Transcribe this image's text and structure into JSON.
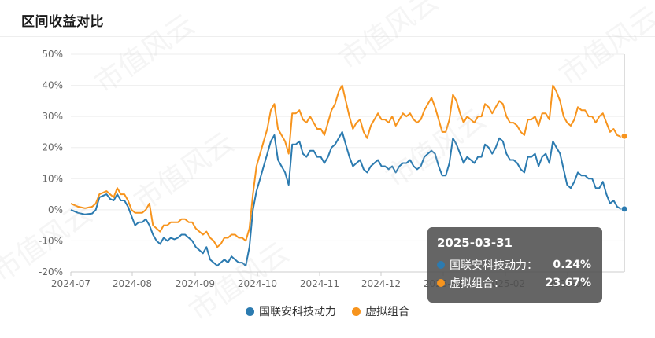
{
  "title": "区间收益对比",
  "watermark": "市值风云",
  "chart_data": {
    "type": "line",
    "yticks": [
      "50%",
      "40%",
      "30%",
      "20%",
      "10%",
      "0%",
      "-10%",
      "-20%"
    ],
    "ylim": [
      -20,
      50
    ],
    "xticks": [
      "2024-07",
      "2024-08",
      "2024-09",
      "2024-10",
      "2024-11",
      "2024-12",
      "2025-01",
      "2025-02",
      "2025-03"
    ],
    "grid": true,
    "legend_position": "bottom",
    "series": [
      {
        "name": "国联安科技动力",
        "color": "#2c7bb0",
        "values": [
          [
            0,
            0
          ],
          [
            2,
            -1
          ],
          [
            4,
            -1.5
          ],
          [
            6,
            -1.2
          ],
          [
            7,
            0
          ],
          [
            8,
            4
          ],
          [
            10,
            5
          ],
          [
            11,
            3.5
          ],
          [
            12,
            3
          ],
          [
            13,
            5
          ],
          [
            14,
            3
          ],
          [
            15,
            3
          ],
          [
            16,
            1
          ],
          [
            17,
            -2
          ],
          [
            18,
            -5
          ],
          [
            19,
            -4
          ],
          [
            20,
            -4
          ],
          [
            21,
            -3
          ],
          [
            22,
            -5
          ],
          [
            23,
            -8
          ],
          [
            24,
            -10
          ],
          [
            25,
            -11
          ],
          [
            26,
            -9
          ],
          [
            27,
            -10
          ],
          [
            28,
            -9
          ],
          [
            29,
            -9.5
          ],
          [
            30,
            -9
          ],
          [
            31,
            -8
          ],
          [
            32,
            -8
          ],
          [
            33,
            -9
          ],
          [
            34,
            -10
          ],
          [
            35,
            -12
          ],
          [
            36,
            -13
          ],
          [
            37,
            -14
          ],
          [
            38,
            -12
          ],
          [
            39,
            -16
          ],
          [
            40,
            -17
          ],
          [
            41,
            -18
          ],
          [
            42,
            -17
          ],
          [
            43,
            -16
          ],
          [
            44,
            -17
          ],
          [
            45,
            -15
          ],
          [
            46,
            -16
          ],
          [
            47,
            -17
          ],
          [
            48,
            -17
          ],
          [
            49,
            -18
          ],
          [
            50,
            -12
          ],
          [
            51,
            0
          ],
          [
            52,
            6
          ],
          [
            53,
            10
          ],
          [
            54,
            14
          ],
          [
            55,
            18
          ],
          [
            56,
            22
          ],
          [
            57,
            24
          ],
          [
            58,
            16
          ],
          [
            59,
            14
          ],
          [
            60,
            12
          ],
          [
            61,
            8
          ],
          [
            62,
            21
          ],
          [
            63,
            21
          ],
          [
            64,
            22
          ],
          [
            65,
            18
          ],
          [
            66,
            17
          ],
          [
            67,
            19
          ],
          [
            68,
            19
          ],
          [
            69,
            17
          ],
          [
            70,
            17
          ],
          [
            71,
            15
          ],
          [
            72,
            17
          ],
          [
            73,
            20
          ],
          [
            74,
            21
          ],
          [
            75,
            23
          ],
          [
            76,
            25
          ],
          [
            77,
            21
          ],
          [
            78,
            17
          ],
          [
            79,
            14
          ],
          [
            80,
            15
          ],
          [
            81,
            16
          ],
          [
            82,
            13
          ],
          [
            83,
            12
          ],
          [
            84,
            14
          ],
          [
            85,
            15
          ],
          [
            86,
            16
          ],
          [
            87,
            14
          ],
          [
            88,
            14
          ],
          [
            89,
            13
          ],
          [
            90,
            14
          ],
          [
            91,
            12
          ],
          [
            92,
            14
          ],
          [
            93,
            15
          ],
          [
            94,
            15
          ],
          [
            95,
            16
          ],
          [
            96,
            14
          ],
          [
            97,
            13
          ],
          [
            98,
            14
          ],
          [
            99,
            17
          ],
          [
            100,
            18
          ],
          [
            101,
            19
          ],
          [
            102,
            18
          ],
          [
            103,
            14
          ],
          [
            104,
            11
          ],
          [
            105,
            11
          ],
          [
            106,
            15
          ],
          [
            107,
            23
          ],
          [
            108,
            21
          ],
          [
            109,
            18
          ],
          [
            110,
            15
          ],
          [
            111,
            17
          ],
          [
            112,
            16
          ],
          [
            113,
            15
          ],
          [
            114,
            17
          ],
          [
            115,
            17
          ],
          [
            116,
            21
          ],
          [
            117,
            20
          ],
          [
            118,
            18
          ],
          [
            119,
            20
          ],
          [
            120,
            23
          ],
          [
            121,
            22
          ],
          [
            122,
            18
          ],
          [
            123,
            16
          ],
          [
            124,
            16
          ],
          [
            125,
            15
          ],
          [
            126,
            13
          ],
          [
            127,
            12
          ],
          [
            128,
            17
          ],
          [
            129,
            17
          ],
          [
            130,
            18
          ],
          [
            131,
            14
          ],
          [
            132,
            17
          ],
          [
            133,
            18
          ],
          [
            134,
            15
          ],
          [
            135,
            22
          ],
          [
            136,
            20
          ],
          [
            137,
            18
          ],
          [
            138,
            13
          ],
          [
            139,
            8
          ],
          [
            140,
            7
          ],
          [
            141,
            9
          ],
          [
            142,
            12
          ],
          [
            143,
            11
          ],
          [
            144,
            11
          ],
          [
            145,
            10
          ],
          [
            146,
            10
          ],
          [
            147,
            7
          ],
          [
            148,
            7
          ],
          [
            149,
            9
          ],
          [
            150,
            5
          ],
          [
            151,
            2
          ],
          [
            152,
            3
          ],
          [
            153,
            1
          ],
          [
            154,
            0.3
          ],
          [
            155,
            0.24
          ]
        ]
      },
      {
        "name": "虚拟组合",
        "color": "#f7941d",
        "values": [
          [
            0,
            2
          ],
          [
            2,
            1
          ],
          [
            4,
            0.5
          ],
          [
            6,
            1
          ],
          [
            7,
            2
          ],
          [
            8,
            5
          ],
          [
            10,
            6
          ],
          [
            11,
            5
          ],
          [
            12,
            4
          ],
          [
            13,
            7
          ],
          [
            14,
            5
          ],
          [
            15,
            5
          ],
          [
            16,
            3
          ],
          [
            17,
            0
          ],
          [
            18,
            -1
          ],
          [
            19,
            -1
          ],
          [
            20,
            -1
          ],
          [
            21,
            0
          ],
          [
            22,
            2
          ],
          [
            23,
            -5
          ],
          [
            24,
            -6
          ],
          [
            25,
            -7
          ],
          [
            26,
            -5
          ],
          [
            27,
            -5
          ],
          [
            28,
            -4
          ],
          [
            29,
            -4
          ],
          [
            30,
            -4
          ],
          [
            31,
            -3
          ],
          [
            32,
            -3
          ],
          [
            33,
            -4
          ],
          [
            34,
            -4
          ],
          [
            35,
            -6
          ],
          [
            36,
            -7
          ],
          [
            37,
            -8
          ],
          [
            38,
            -7
          ],
          [
            39,
            -9
          ],
          [
            40,
            -10
          ],
          [
            41,
            -12
          ],
          [
            42,
            -11
          ],
          [
            43,
            -9
          ],
          [
            44,
            -9
          ],
          [
            45,
            -8
          ],
          [
            46,
            -8
          ],
          [
            47,
            -9
          ],
          [
            48,
            -9
          ],
          [
            49,
            -10
          ],
          [
            50,
            -6
          ],
          [
            51,
            5
          ],
          [
            52,
            14
          ],
          [
            53,
            18
          ],
          [
            54,
            22
          ],
          [
            55,
            26
          ],
          [
            56,
            32
          ],
          [
            57,
            34
          ],
          [
            58,
            26
          ],
          [
            59,
            24
          ],
          [
            60,
            22
          ],
          [
            61,
            18
          ],
          [
            62,
            31
          ],
          [
            63,
            31
          ],
          [
            64,
            32
          ],
          [
            65,
            29
          ],
          [
            66,
            28
          ],
          [
            67,
            30
          ],
          [
            68,
            28
          ],
          [
            69,
            26
          ],
          [
            70,
            26
          ],
          [
            71,
            24
          ],
          [
            72,
            28
          ],
          [
            73,
            32
          ],
          [
            74,
            34
          ],
          [
            75,
            38
          ],
          [
            76,
            40
          ],
          [
            77,
            35
          ],
          [
            78,
            30
          ],
          [
            79,
            26
          ],
          [
            80,
            28
          ],
          [
            81,
            29
          ],
          [
            82,
            25
          ],
          [
            83,
            23
          ],
          [
            84,
            27
          ],
          [
            85,
            29
          ],
          [
            86,
            31
          ],
          [
            87,
            29
          ],
          [
            88,
            29
          ],
          [
            89,
            28
          ],
          [
            90,
            30
          ],
          [
            91,
            27
          ],
          [
            92,
            29
          ],
          [
            93,
            31
          ],
          [
            94,
            30
          ],
          [
            95,
            31
          ],
          [
            96,
            29
          ],
          [
            97,
            28
          ],
          [
            98,
            29
          ],
          [
            99,
            32
          ],
          [
            100,
            34
          ],
          [
            101,
            36
          ],
          [
            102,
            33
          ],
          [
            103,
            29
          ],
          [
            104,
            25
          ],
          [
            105,
            25
          ],
          [
            106,
            29
          ],
          [
            107,
            37
          ],
          [
            108,
            35
          ],
          [
            109,
            31
          ],
          [
            110,
            28
          ],
          [
            111,
            30
          ],
          [
            112,
            29
          ],
          [
            113,
            28
          ],
          [
            114,
            30
          ],
          [
            115,
            30
          ],
          [
            116,
            34
          ],
          [
            117,
            33
          ],
          [
            118,
            31
          ],
          [
            119,
            33
          ],
          [
            120,
            35
          ],
          [
            121,
            34
          ],
          [
            122,
            30
          ],
          [
            123,
            28
          ],
          [
            124,
            28
          ],
          [
            125,
            27
          ],
          [
            126,
            25
          ],
          [
            127,
            24
          ],
          [
            128,
            29
          ],
          [
            129,
            29
          ],
          [
            130,
            30
          ],
          [
            131,
            27
          ],
          [
            132,
            31
          ],
          [
            133,
            31
          ],
          [
            134,
            29
          ],
          [
            135,
            40
          ],
          [
            136,
            38
          ],
          [
            137,
            35
          ],
          [
            138,
            30
          ],
          [
            139,
            28
          ],
          [
            140,
            27
          ],
          [
            141,
            29
          ],
          [
            142,
            33
          ],
          [
            143,
            32
          ],
          [
            144,
            32
          ],
          [
            145,
            30
          ],
          [
            146,
            30
          ],
          [
            147,
            28
          ],
          [
            148,
            30
          ],
          [
            149,
            31
          ],
          [
            150,
            28
          ],
          [
            151,
            25
          ],
          [
            152,
            26
          ],
          [
            153,
            24
          ],
          [
            154,
            23.5
          ],
          [
            155,
            23.67
          ]
        ]
      }
    ]
  },
  "tooltip": {
    "date": "2025-03-31",
    "rows": [
      {
        "name": "国联安科技动力：",
        "value": "0.24%",
        "color": "#2c7bb0"
      },
      {
        "name": "虚拟组合：",
        "value": "23.67%",
        "color": "#f7941d"
      }
    ]
  }
}
